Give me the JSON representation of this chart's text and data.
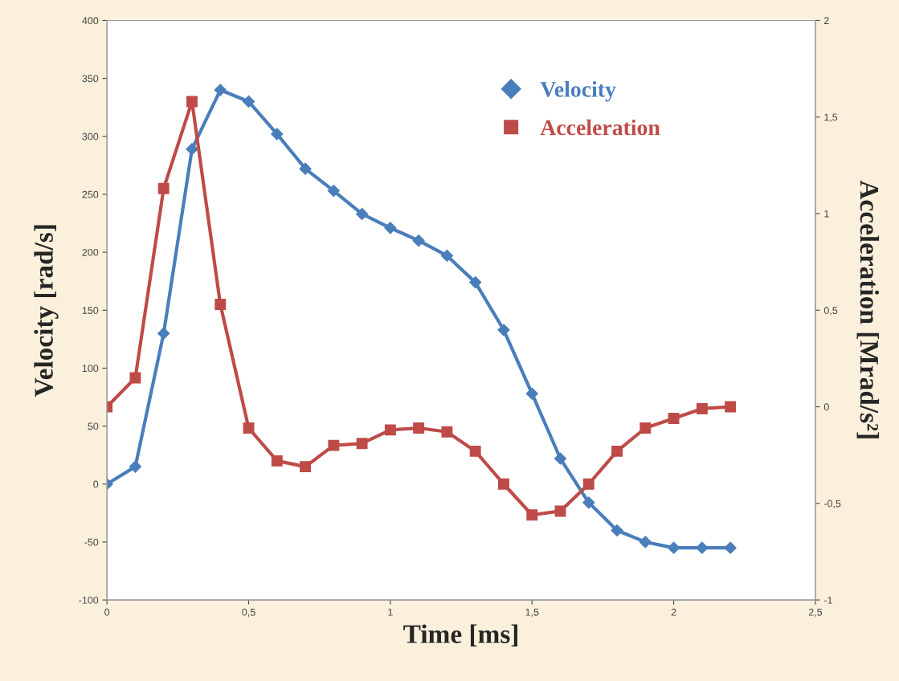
{
  "chart_data": {
    "type": "line",
    "xlabel": "Time [ms]",
    "ylabel": "Velocity [rad/s]",
    "y2label": "Acceleration [Mrad/s²]",
    "x": [
      0,
      0.1,
      0.2,
      0.3,
      0.4,
      0.5,
      0.6,
      0.7,
      0.8,
      0.9,
      1.0,
      1.1,
      1.2,
      1.3,
      1.4,
      1.5,
      1.6,
      1.7,
      1.8,
      1.9,
      2.0,
      2.1,
      2.2
    ],
    "series": [
      {
        "name": "Velocity",
        "color": "#4a7ebb",
        "marker": "diamond",
        "values": [
          0,
          15,
          130,
          289,
          340,
          330,
          302,
          272,
          253,
          233,
          221,
          210,
          197,
          174,
          133,
          78,
          22,
          -16,
          -40,
          -50,
          -55,
          -55,
          -55
        ]
      },
      {
        "name": "Acceleration",
        "color": "#be4b48",
        "marker": "square",
        "axis": "y2",
        "values": [
          0,
          0.15,
          1.13,
          1.58,
          0.53,
          -0.11,
          -0.28,
          -0.31,
          -0.2,
          -0.19,
          -0.12,
          -0.11,
          -0.13,
          -0.23,
          -0.4,
          -0.56,
          -0.54,
          -0.4,
          -0.23,
          -0.11,
          -0.06,
          -0.01,
          0
        ]
      }
    ],
    "xlim": [
      0,
      2.5
    ],
    "xticks": [
      0,
      {
        "value": 0.5,
        "label": "0,5"
      },
      1,
      {
        "value": 1.5,
        "label": "1,5"
      },
      2,
      {
        "value": 2.5,
        "label": "2,5"
      }
    ],
    "ylim": [
      -100,
      400
    ],
    "yticks": [
      -100,
      -50,
      0,
      50,
      100,
      150,
      200,
      250,
      300,
      350,
      400
    ],
    "y2lim": [
      -1,
      2
    ],
    "y2ticks": [
      -1,
      {
        "value": -0.5,
        "label": "-0,5"
      },
      0,
      {
        "value": 0.5,
        "label": "0,5"
      },
      1,
      {
        "value": 1.5,
        "label": "1,5"
      },
      2
    ],
    "grid": false,
    "legend": "top",
    "line_style": "solid"
  }
}
